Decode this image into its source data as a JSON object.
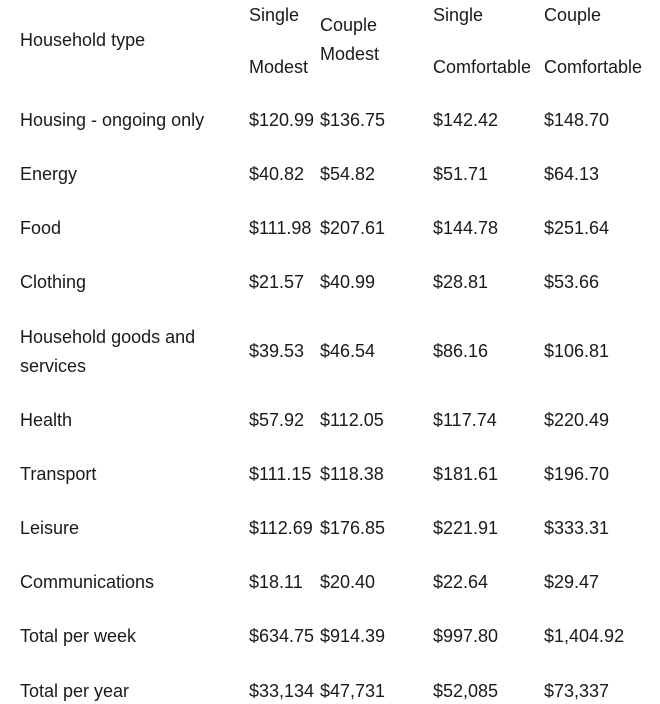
{
  "header": {
    "household_type": "Household type",
    "single_modest_line1": "Single",
    "single_modest_line2": "Modest",
    "couple_modest_line1": "Couple",
    "couple_modest_line2": "Modest",
    "single_comfortable_line1": "Single",
    "single_comfortable_line2": "Comfortable",
    "couple_comfortable_line1": "Couple",
    "couple_comfortable_line2": "Comfortable"
  },
  "rows": [
    {
      "label": "Housing - ongoing only",
      "single_modest": "$120.99",
      "couple_modest": "$136.75",
      "single_comfortable": "$142.42",
      "couple_comfortable": "$148.70"
    },
    {
      "label": "Energy",
      "single_modest": "$40.82",
      "couple_modest": "$54.82",
      "single_comfortable": "$51.71",
      "couple_comfortable": "$64.13"
    },
    {
      "label": "Food",
      "single_modest": "$111.98",
      "couple_modest": "$207.61",
      "single_comfortable": "$144.78",
      "couple_comfortable": "$251.64"
    },
    {
      "label": "Clothing",
      "single_modest": "$21.57",
      "couple_modest": "$40.99",
      "single_comfortable": "$28.81",
      "couple_comfortable": "$53.66"
    },
    {
      "label_line1": "Household goods and",
      "label_line2": "services",
      "single_modest": "$39.53",
      "couple_modest": "$46.54",
      "single_comfortable": "$86.16",
      "couple_comfortable": "$106.81"
    },
    {
      "label": "Health",
      "single_modest": "$57.92",
      "couple_modest": "$112.05",
      "single_comfortable": "$117.74",
      "couple_comfortable": "$220.49"
    },
    {
      "label": "Transport",
      "single_modest": "$111.15",
      "couple_modest": "$118.38",
      "single_comfortable": "$181.61",
      "couple_comfortable": "$196.70"
    },
    {
      "label": "Leisure",
      "single_modest": "$112.69",
      "couple_modest": "$176.85",
      "single_comfortable": "$221.91",
      "couple_comfortable": "$333.31"
    },
    {
      "label": "Communications",
      "single_modest": "$18.11",
      "couple_modest": "$20.40",
      "single_comfortable": "$22.64",
      "couple_comfortable": "$29.47"
    },
    {
      "label": "Total per week",
      "single_modest": "$634.75",
      "couple_modest": "$914.39",
      "single_comfortable": "$997.80",
      "couple_comfortable": "$1,404.92"
    },
    {
      "label": "Total per year",
      "single_modest": "$33,134",
      "couple_modest": "$47,731",
      "single_comfortable": "$52,085",
      "couple_comfortable": "$73,337"
    }
  ]
}
